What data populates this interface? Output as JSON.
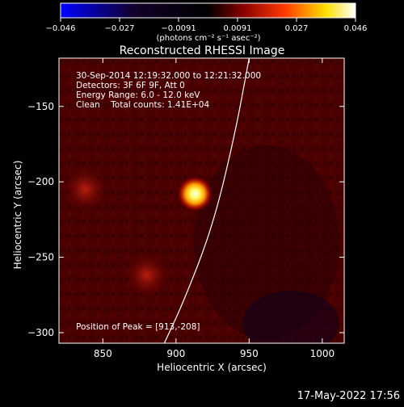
{
  "chart_data": {
    "type": "heatmap",
    "title": "Reconstructed RHESSI Image",
    "xlabel": "Heliocentric X (arcsec)",
    "ylabel": "Heliocentric Y (arcsec)",
    "xlim": [
      820,
      1015
    ],
    "ylim": [
      -307,
      -118
    ],
    "xticks": [
      850,
      900,
      950,
      1000
    ],
    "yticks": [
      -150,
      -200,
      -250,
      -300
    ],
    "colorbar": {
      "label": "(photons cm⁻² s⁻¹ asec⁻²)",
      "min": -0.046,
      "max": 0.046,
      "ticks": [
        "−0.046",
        "−0.027",
        "−0.0091",
        "0.0091",
        "0.027",
        "0.046"
      ],
      "colors": [
        "#0000ff",
        "#000000",
        "#ff0000",
        "#ffff00",
        "#ffffff"
      ]
    },
    "annotations": [
      "30-Sep-2014 12:19:32.000 to 12:21:32.000",
      "Detectors: 3F 6F 9F, Att 0",
      "Energy Range: 6.0 - 12.0 keV",
      "Clean    Total counts: 1.41E+04",
      "Position of Peak = [913,-208]"
    ],
    "peak": [
      913,
      -208
    ],
    "sources": [
      {
        "x": 913,
        "y": -208,
        "value": 0.046
      },
      {
        "x": 880,
        "y": -262,
        "value": 0.018
      },
      {
        "x": 838,
        "y": -205,
        "value": 0.012
      }
    ],
    "limb_curve": [
      [
        950,
        -118
      ],
      [
        940,
        -170
      ],
      [
        925,
        -230
      ],
      [
        905,
        -280
      ],
      [
        892,
        -307
      ]
    ]
  },
  "footer_timestamp": "17-May-2022 17:56"
}
